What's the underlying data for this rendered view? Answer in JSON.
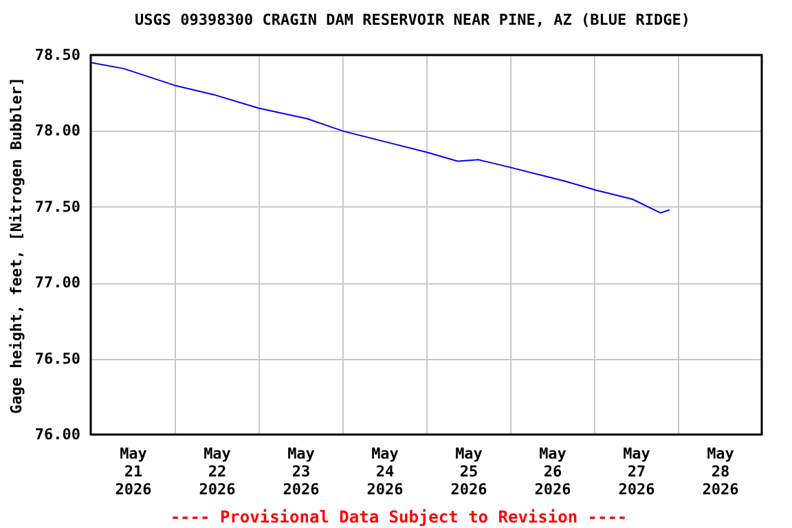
{
  "chart_data": {
    "type": "line",
    "title": "USGS 09398300 CRAGIN DAM RESERVOIR NEAR PINE, AZ (BLUE RIDGE)",
    "ylabel": "Gage height, feet, [Nitrogen Bubbler]",
    "annotations": [
      "---- Provisional Data Subject to Revision ----"
    ],
    "x": [
      "2026-05-21T00:00",
      "2026-05-21T09:30",
      "2026-05-22T00:00",
      "2026-05-22T11:00",
      "2026-05-23T00:00",
      "2026-05-23T14:00",
      "2026-05-24T00:00",
      "2026-05-24T12:00",
      "2026-05-25T00:00",
      "2026-05-25T09:00",
      "2026-05-25T15:00",
      "2026-05-26T00:00",
      "2026-05-26T15:30",
      "2026-05-27T00:30",
      "2026-05-27T11:00",
      "2026-05-27T19:00",
      "2026-05-27T21:40"
    ],
    "series": [
      {
        "color": "#0000ff",
        "values": [
          78.45,
          78.41,
          78.3,
          78.24,
          78.15,
          78.08,
          78.0,
          77.93,
          77.86,
          77.8,
          77.81,
          77.76,
          77.67,
          77.61,
          77.55,
          77.46,
          77.48
        ]
      }
    ],
    "xlim": [
      "2026-05-21T00:00",
      "2026-05-29T00:00"
    ],
    "xticks": [
      {
        "value": "2026-05-21T12:00",
        "label": "May 21 2026"
      },
      {
        "value": "2026-05-22T00:00",
        "label": null
      },
      {
        "value": "2026-05-22T12:00",
        "label": "May 22 2026"
      },
      {
        "value": "2026-05-23T00:00",
        "label": null
      },
      {
        "value": "2026-05-23T12:00",
        "label": "May 23 2026"
      },
      {
        "value": "2026-05-24T00:00",
        "label": null
      },
      {
        "value": "2026-05-24T12:00",
        "label": "May 24 2026"
      },
      {
        "value": "2026-05-25T00:00",
        "label": null
      },
      {
        "value": "2026-05-25T12:00",
        "label": "May 25 2026"
      },
      {
        "value": "2026-05-26T00:00",
        "label": null
      },
      {
        "value": "2026-05-26T12:00",
        "label": "May 26 2026"
      },
      {
        "value": "2026-05-27T00:00",
        "label": null
      },
      {
        "value": "2026-05-27T12:00",
        "label": "May 27 2026"
      },
      {
        "value": "2026-05-28T00:00",
        "label": null
      },
      {
        "value": "2026-05-28T12:00",
        "label": "May 28 2026"
      }
    ],
    "ylim": [
      76.0,
      78.5
    ],
    "yticks": [
      {
        "value": 76.0,
        "label": "76.00"
      },
      {
        "value": 76.5,
        "label": "76.50"
      },
      {
        "value": 77.0,
        "label": "77.00"
      },
      {
        "value": 77.5,
        "label": "77.50"
      },
      {
        "value": 78.0,
        "label": "78.00"
      },
      {
        "value": 78.5,
        "label": "78.50"
      }
    ],
    "grid": true,
    "marker": "none",
    "line_style": "solid"
  }
}
